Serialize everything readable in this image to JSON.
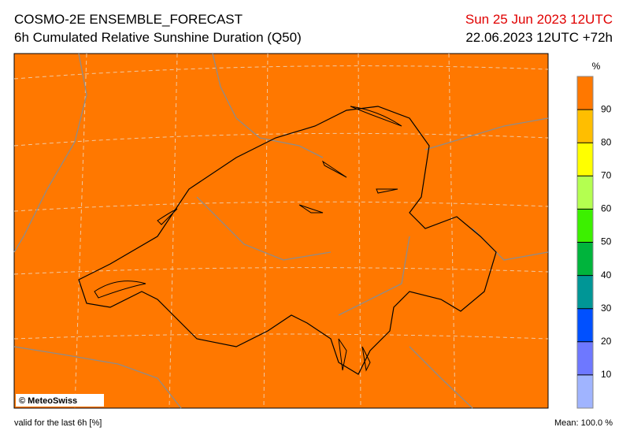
{
  "header": {
    "title": "COSMO-2E ENSEMBLE_FORECAST",
    "subtitle": "6h Cumulated Relative Sunshine Duration (Q50)",
    "valid_time": "Sun 25 Jun 2023 12UTC",
    "run_time": "22.06.2023 12UTC +72h"
  },
  "map": {
    "credit": "© MeteoSwiss"
  },
  "colorbar": {
    "unit": "%",
    "range": [
      0,
      100
    ],
    "ticks": [
      10,
      20,
      30,
      40,
      50,
      60,
      70,
      80,
      90
    ],
    "colors": [
      "#a0b4ff",
      "#6e78ff",
      "#0050ff",
      "#009696",
      "#00b43c",
      "#3cf000",
      "#b4ff50",
      "#ffff00",
      "#ffbe00",
      "#ff7800"
    ]
  },
  "footer": {
    "note": "valid for the last 6h [%]",
    "mean": "Mean:  100.0 %"
  }
}
